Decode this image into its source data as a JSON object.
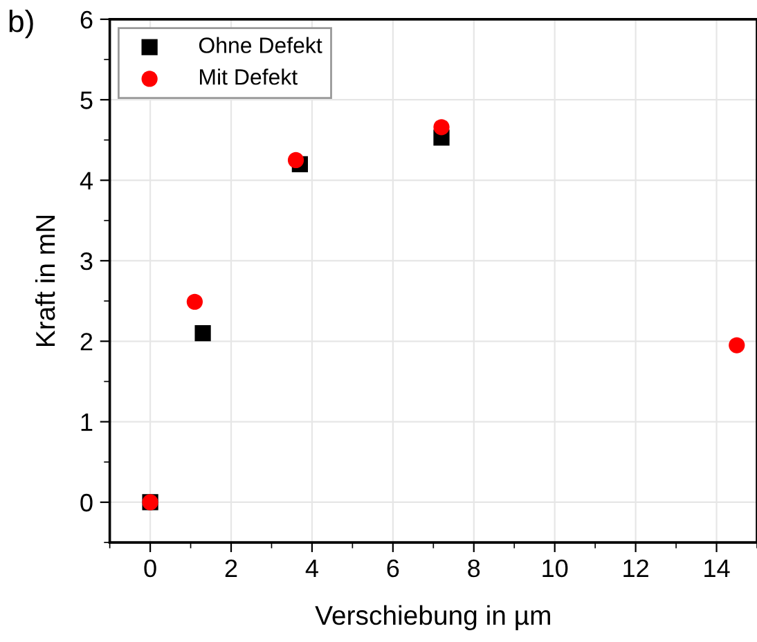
{
  "chart_data": {
    "type": "scatter",
    "xlabel": "Verschiebung in µm",
    "ylabel": "Kraft in mN",
    "annotations": [
      "b)"
    ],
    "xlim": [
      -1,
      15
    ],
    "xticks": [
      0,
      2,
      4,
      6,
      8,
      10,
      12,
      14
    ],
    "ylim": [
      -0.5,
      6
    ],
    "yticks": [
      0,
      1,
      2,
      3,
      4,
      5,
      6
    ],
    "grid": true,
    "legend": "top left",
    "series": [
      {
        "name": "Ohne Defekt",
        "color": "#000000",
        "marker": "square",
        "x": [
          0,
          1.3,
          3.7,
          7.2
        ],
        "values": [
          0,
          2.1,
          4.2,
          4.53
        ]
      },
      {
        "name": "Mit Defekt",
        "color": "#ff0000",
        "marker": "circle",
        "x": [
          0,
          1.1,
          3.6,
          7.2,
          14.5
        ],
        "values": [
          0,
          2.49,
          4.25,
          4.66,
          1.95
        ]
      }
    ]
  }
}
